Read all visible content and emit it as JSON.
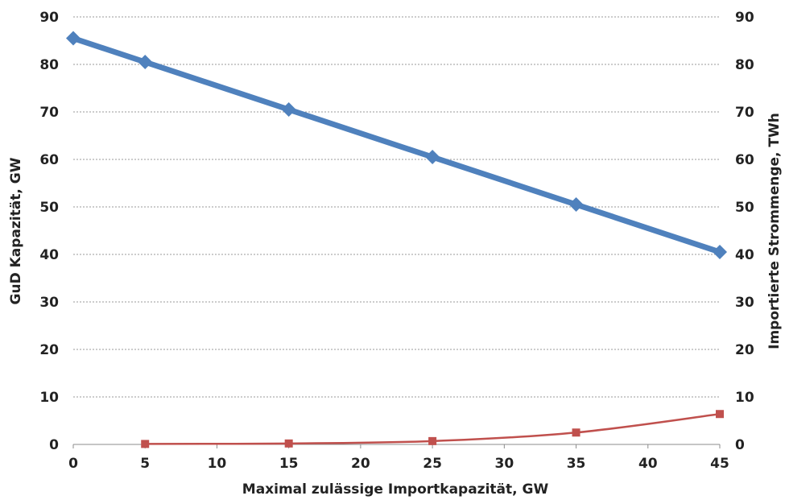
{
  "chart_data": {
    "type": "line",
    "xlabel": "Maximal zulässige Importkapazität, GW",
    "ylabel_left": "GuD Kapazität, GW",
    "ylabel_right": "Importierte Strommenge, TWh",
    "xlim": [
      0,
      45
    ],
    "ylim_left": [
      0,
      90
    ],
    "ylim_right": [
      0,
      90
    ],
    "x_ticks": [
      0,
      5,
      10,
      15,
      20,
      25,
      30,
      35,
      40,
      45
    ],
    "y_ticks_left": [
      0,
      10,
      20,
      30,
      40,
      50,
      60,
      70,
      80,
      90
    ],
    "y_ticks_right": [
      0,
      10,
      20,
      30,
      40,
      50,
      60,
      70,
      80,
      90
    ],
    "grid": "horizontal dashed",
    "legend": "none",
    "series": [
      {
        "axis": "left",
        "color": "#4f81bd",
        "marker": "diamond",
        "x": [
          0,
          5,
          15,
          25,
          35,
          45
        ],
        "values": [
          85.5,
          80.5,
          70.5,
          60.5,
          50.5,
          40.5
        ]
      },
      {
        "axis": "right",
        "color": "#c0504d",
        "marker": "square",
        "smooth": true,
        "x": [
          5,
          15,
          25,
          35,
          45
        ],
        "values": [
          0.1,
          0.2,
          0.7,
          2.5,
          6.4
        ]
      }
    ]
  }
}
